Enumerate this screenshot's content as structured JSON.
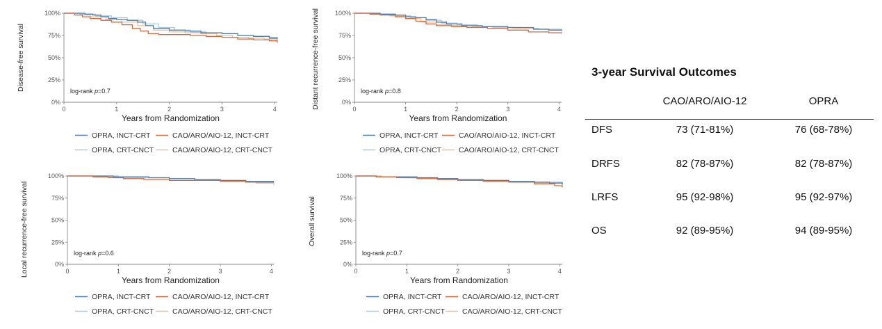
{
  "legend_labels": [
    "OPRA, INCT-CRT",
    "CAO/ARO/AIO-12, INCT-CRT",
    "OPRA, CRT-CNCT",
    "CAO/ARO/AIO-12, CRT-CNCT"
  ],
  "colors": {
    "OPRA, INCT-CRT": "#4a7fb0",
    "CAO/ARO/AIO-12, INCT-CRT": "#d8673a",
    "OPRA, CRT-CNCT": "#a9c9e0",
    "CAO/ARO/AIO-12, CRT-CNCT": "#ecbf9c"
  },
  "chart_data": [
    {
      "type": "line",
      "ylabel": "Disease-free survival",
      "xlabel": "Years from Randomization",
      "xlim": [
        0,
        4.05
      ],
      "ylim": [
        0,
        100
      ],
      "x_ticks": [
        "0",
        "1",
        "2",
        "3",
        "4"
      ],
      "y_ticks": [
        "0%",
        "25%",
        "50%",
        "75%",
        "100%"
      ],
      "annotation": {
        "prefix": "log-rank ",
        "italic": "p",
        "suffix": "=0.7"
      },
      "legend_placement": "bottom",
      "series": [
        {
          "name": "OPRA, INCT-CRT",
          "x": [
            0,
            0.25,
            0.4,
            0.55,
            0.7,
            0.85,
            1.0,
            1.2,
            1.4,
            1.55,
            1.7,
            2.0,
            2.3,
            2.6,
            3.0,
            3.3,
            3.6,
            3.9,
            4.05
          ],
          "y": [
            100,
            100,
            99,
            98,
            96,
            94,
            93,
            92,
            90,
            86,
            83,
            81,
            80,
            78,
            77,
            75,
            74,
            72,
            71
          ]
        },
        {
          "name": "CAO/ARO/AIO-12, INCT-CRT",
          "x": [
            0,
            0.2,
            0.35,
            0.5,
            0.7,
            0.9,
            1.1,
            1.3,
            1.45,
            1.6,
            1.8,
            2.1,
            2.4,
            2.7,
            3.0,
            3.3,
            3.6,
            3.9,
            4.05
          ],
          "y": [
            100,
            98,
            96,
            94,
            92,
            90,
            87,
            83,
            80,
            77,
            76,
            76,
            75,
            74,
            73,
            71,
            70,
            69,
            67
          ]
        },
        {
          "name": "OPRA, CRT-CNCT",
          "x": [
            0,
            0.3,
            0.6,
            0.9,
            1.2,
            1.5,
            1.8,
            2.1,
            2.4,
            2.7,
            3.0,
            3.3,
            3.6,
            3.9,
            4.05
          ],
          "y": [
            100,
            99,
            97,
            95,
            92,
            88,
            84,
            81,
            79,
            78,
            77,
            75,
            74,
            73,
            72
          ]
        },
        {
          "name": "CAO/ARO/AIO-12, CRT-CNCT",
          "x": [
            0,
            0.25,
            0.5,
            0.8,
            1.1,
            1.4,
            1.7,
            2.0,
            2.3,
            2.6,
            2.9,
            3.2,
            3.5,
            3.8,
            4.05
          ],
          "y": [
            100,
            98,
            96,
            93,
            90,
            86,
            81,
            79,
            78,
            77,
            75,
            73,
            72,
            71,
            69
          ]
        }
      ]
    },
    {
      "type": "line",
      "ylabel": "Distant recurrence-free survival",
      "xlabel": "Years from Randomization",
      "xlim": [
        0,
        4.05
      ],
      "ylim": [
        0,
        100
      ],
      "x_ticks": [
        "0",
        "1",
        "2",
        "3",
        "4"
      ],
      "y_ticks": [
        "0%",
        "25%",
        "50%",
        "75%",
        "100%"
      ],
      "annotation": {
        "prefix": "log-rank ",
        "italic": "p",
        "suffix": "=0.8"
      },
      "legend_placement": "bottom",
      "series": [
        {
          "name": "OPRA, INCT-CRT",
          "x": [
            0,
            0.3,
            0.5,
            0.8,
            1.0,
            1.2,
            1.4,
            1.6,
            1.8,
            2.1,
            2.5,
            3.0,
            3.5,
            3.8,
            4.05
          ],
          "y": [
            100,
            100,
            99,
            98,
            96,
            95,
            93,
            90,
            88,
            86,
            85,
            84,
            82,
            81,
            80
          ]
        },
        {
          "name": "CAO/ARO/AIO-12, INCT-CRT",
          "x": [
            0,
            0.3,
            0.5,
            0.8,
            1.0,
            1.2,
            1.4,
            1.6,
            1.9,
            2.2,
            2.6,
            3.0,
            3.4,
            3.8,
            4.05
          ],
          "y": [
            100,
            99,
            98,
            96,
            94,
            91,
            88,
            86,
            85,
            84,
            83,
            81,
            79,
            78,
            77
          ]
        },
        {
          "name": "OPRA, CRT-CNCT",
          "x": [
            0,
            0.4,
            0.8,
            1.1,
            1.4,
            1.7,
            2.0,
            2.4,
            2.8,
            3.2,
            3.6,
            4.05
          ],
          "y": [
            100,
            99,
            97,
            95,
            92,
            89,
            87,
            85,
            84,
            83,
            82,
            81
          ]
        },
        {
          "name": "CAO/ARO/AIO-12, CRT-CNCT",
          "x": [
            0,
            0.35,
            0.7,
            1.0,
            1.3,
            1.6,
            1.9,
            2.3,
            2.7,
            3.1,
            3.5,
            3.9,
            4.05
          ],
          "y": [
            100,
            99,
            97,
            94,
            90,
            87,
            86,
            85,
            84,
            83,
            82,
            81,
            80
          ]
        }
      ]
    },
    {
      "type": "line",
      "ylabel": "Local recurrence-free survival",
      "xlabel": "Years from Randomization",
      "xlim": [
        0,
        4.05
      ],
      "ylim": [
        0,
        100
      ],
      "x_ticks": [
        "0",
        "1",
        "2",
        "3",
        "4"
      ],
      "y_ticks": [
        "0%",
        "25%",
        "50%",
        "75%",
        "100%"
      ],
      "annotation": {
        "prefix": "log-rank ",
        "italic": "p",
        "suffix": "=0.6"
      },
      "legend_placement": "bottom",
      "series": [
        {
          "name": "OPRA, INCT-CRT",
          "x": [
            0,
            0.6,
            0.9,
            1.2,
            1.6,
            2.0,
            2.5,
            3.0,
            3.5,
            4.05
          ],
          "y": [
            100,
            100,
            99,
            99,
            98,
            97,
            96,
            95,
            94,
            94
          ]
        },
        {
          "name": "CAO/ARO/AIO-12, INCT-CRT",
          "x": [
            0,
            0.5,
            0.8,
            1.1,
            1.5,
            2.0,
            2.5,
            3.0,
            3.5,
            4.05
          ],
          "y": [
            100,
            99,
            98,
            97,
            96,
            95,
            95,
            94,
            93,
            93
          ]
        },
        {
          "name": "OPRA, CRT-CNCT",
          "x": [
            0,
            0.6,
            1.0,
            1.5,
            2.0,
            2.5,
            3.0,
            3.4,
            3.7,
            4.05
          ],
          "y": [
            100,
            100,
            99,
            98,
            97,
            96,
            95,
            94,
            92,
            90
          ]
        },
        {
          "name": "CAO/ARO/AIO-12, CRT-CNCT",
          "x": [
            0,
            0.5,
            1.0,
            1.5,
            2.0,
            2.5,
            3.0,
            3.5,
            4.05
          ],
          "y": [
            100,
            99,
            98,
            98,
            97,
            96,
            95,
            94,
            93
          ]
        }
      ]
    },
    {
      "type": "line",
      "ylabel": "Overall  survival",
      "xlabel": "Years from Randomization",
      "xlim": [
        0,
        4.05
      ],
      "ylim": [
        0,
        100
      ],
      "x_ticks": [
        "0",
        "1",
        "2",
        "3",
        "4"
      ],
      "y_ticks": [
        "0%",
        "25%",
        "50%",
        "75%",
        "100%"
      ],
      "annotation": {
        "prefix": "log-rank ",
        "italic": "p",
        "suffix": "=0.7"
      },
      "legend_placement": "bottom",
      "series": [
        {
          "name": "OPRA, INCT-CRT",
          "x": [
            0,
            0.4,
            0.8,
            1.2,
            1.6,
            2.0,
            2.5,
            3.0,
            3.5,
            3.8,
            4.05
          ],
          "y": [
            100,
            99,
            99,
            98,
            97,
            96,
            95,
            94,
            93,
            92,
            90
          ]
        },
        {
          "name": "CAO/ARO/AIO-12, INCT-CRT",
          "x": [
            0,
            0.4,
            0.8,
            1.2,
            1.6,
            2.0,
            2.5,
            3.0,
            3.5,
            3.9,
            4.05
          ],
          "y": [
            100,
            99,
            98,
            97,
            96,
            95,
            94,
            93,
            91,
            89,
            87
          ]
        },
        {
          "name": "OPRA, CRT-CNCT",
          "x": [
            0,
            0.5,
            1.0,
            1.5,
            2.0,
            2.5,
            3.0,
            3.5,
            4.05
          ],
          "y": [
            100,
            99,
            98,
            97,
            96,
            95,
            94,
            93,
            92
          ]
        },
        {
          "name": "CAO/ARO/AIO-12, CRT-CNCT",
          "x": [
            0,
            0.5,
            1.0,
            1.5,
            2.0,
            2.5,
            3.0,
            3.5,
            4.05
          ],
          "y": [
            100,
            99,
            98,
            97,
            96,
            95,
            93,
            92,
            91
          ]
        }
      ]
    }
  ],
  "table": {
    "title": "3-year Survival Outcomes",
    "columns": [
      "",
      "CAO/ARO/AIO-12",
      "OPRA"
    ],
    "rows": [
      [
        "DFS",
        "73 (71-81%)",
        "76 (68-78%)"
      ],
      [
        "DRFS",
        "82 (78-87%)",
        "82 (78-87%)"
      ],
      [
        "LRFS",
        "95 (92-98%)",
        "95 (92-97%)"
      ],
      [
        "OS",
        "92 (89-95%)",
        "94 (89-95%)"
      ]
    ]
  }
}
